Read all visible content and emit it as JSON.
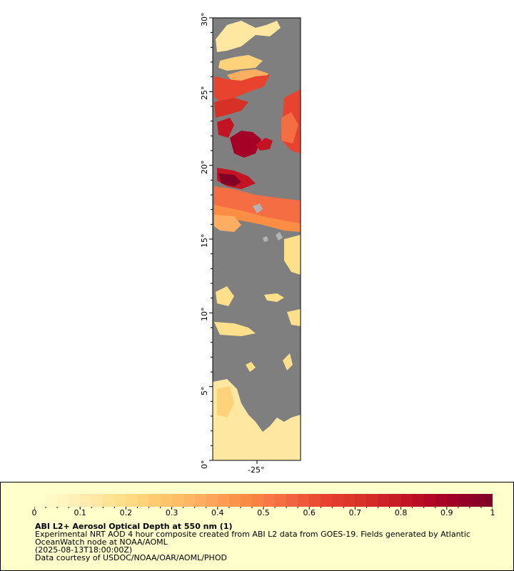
{
  "map": {
    "background_color": "#7f7f7f",
    "land_color": "#b3b3b3",
    "lat_labels": [
      "30°",
      "25°",
      "20°",
      "15°",
      "10°",
      "5°",
      "0°"
    ],
    "lon_labels": [
      "-25°"
    ]
  },
  "legend": {
    "colorbar_colors": [
      "#ffffcc",
      "#ffedb3",
      "#fee08b",
      "#fec76a",
      "#fdae61",
      "#fb8d45",
      "#f46d43",
      "#e8432e",
      "#d73027",
      "#c41424",
      "#a50026",
      "#800026"
    ],
    "tick_labels": [
      "0",
      "0.1",
      "0.2",
      "0.3",
      "0.4",
      "0.5",
      "0.6",
      "0.7",
      "0.8",
      "0.9",
      "1"
    ],
    "title": "ABI L2+ Aerosol Optical Depth at 550 nm (1)",
    "line1": "Experimental NRT AOD 4 hour composite created from ABI L2 data from GOES-19. Fields generated by Atlantic",
    "line2": "OceanWatch node at NOAA/AOML",
    "line3": "(2025-08-13T18:00:00Z)",
    "line4": "Data courtesy of USDOC/NOAA/OAR/AOML/PHOD"
  }
}
